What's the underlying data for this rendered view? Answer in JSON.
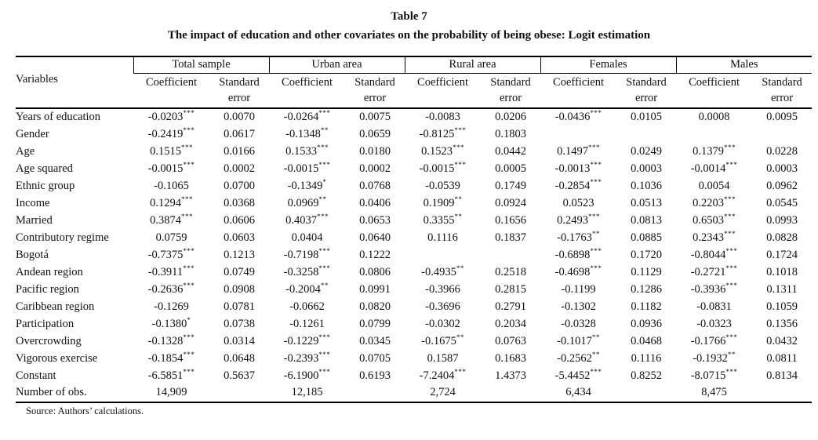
{
  "title": {
    "line1": "Table 7",
    "line2": "The impact of education and other covariates on the probability of being obese: Logit estimation"
  },
  "table": {
    "variables_header": "Variables",
    "groups": [
      "Total sample",
      "Urban area",
      "Rural area",
      "Females",
      "Males"
    ],
    "col_headers": {
      "coefficient": "Coefficient",
      "standard": "Standard",
      "error": "error"
    },
    "rows": [
      {
        "label": "Years of education",
        "cells": [
          {
            "coef": "-0.0203",
            "stars": "***",
            "se": "0.0070"
          },
          {
            "coef": "-0.0264",
            "stars": "***",
            "se": "0.0075"
          },
          {
            "coef": "-0.0083",
            "stars": "",
            "se": "0.0206"
          },
          {
            "coef": "-0.0436",
            "stars": "***",
            "se": "0.0105"
          },
          {
            "coef": "0.0008",
            "stars": "",
            "se": "0.0095"
          }
        ]
      },
      {
        "label": "Gender",
        "cells": [
          {
            "coef": "-0.2419",
            "stars": "***",
            "se": "0.0617"
          },
          {
            "coef": "-0.1348",
            "stars": "**",
            "se": "0.0659"
          },
          {
            "coef": "-0.8125",
            "stars": "***",
            "se": "0.1803"
          },
          {
            "coef": "",
            "stars": "",
            "se": ""
          },
          {
            "coef": "",
            "stars": "",
            "se": ""
          }
        ]
      },
      {
        "label": "Age",
        "cells": [
          {
            "coef": "0.1515",
            "stars": "***",
            "se": "0.0166"
          },
          {
            "coef": "0.1533",
            "stars": "***",
            "se": "0.0180"
          },
          {
            "coef": "0.1523",
            "stars": "***",
            "se": "0.0442"
          },
          {
            "coef": "0.1497",
            "stars": "***",
            "se": "0.0249"
          },
          {
            "coef": "0.1379",
            "stars": "***",
            "se": "0.0228"
          }
        ]
      },
      {
        "label": "Age squared",
        "cells": [
          {
            "coef": "-0.0015",
            "stars": "***",
            "se": "0.0002"
          },
          {
            "coef": "-0.0015",
            "stars": "***",
            "se": "0.0002"
          },
          {
            "coef": "-0.0015",
            "stars": "***",
            "se": "0.0005"
          },
          {
            "coef": "-0.0013",
            "stars": "***",
            "se": "0.0003"
          },
          {
            "coef": "-0.0014",
            "stars": "***",
            "se": "0.0003"
          }
        ]
      },
      {
        "label": "Ethnic group",
        "cells": [
          {
            "coef": "-0.1065",
            "stars": "",
            "se": "0.0700"
          },
          {
            "coef": "-0.1349",
            "stars": "*",
            "se": "0.0768"
          },
          {
            "coef": "-0.0539",
            "stars": "",
            "se": "0.1749"
          },
          {
            "coef": "-0.2854",
            "stars": "***",
            "se": "0.1036"
          },
          {
            "coef": "0.0054",
            "stars": "",
            "se": "0.0962"
          }
        ]
      },
      {
        "label": "Income",
        "cells": [
          {
            "coef": "0.1294",
            "stars": "***",
            "se": "0.0368"
          },
          {
            "coef": "0.0969",
            "stars": "**",
            "se": "0.0406"
          },
          {
            "coef": "0.1909",
            "stars": "**",
            "se": "0.0924"
          },
          {
            "coef": "0.0523",
            "stars": "",
            "se": "0.0513"
          },
          {
            "coef": "0.2203",
            "stars": "***",
            "se": "0.0545"
          }
        ]
      },
      {
        "label": "Married",
        "cells": [
          {
            "coef": "0.3874",
            "stars": "***",
            "se": "0.0606"
          },
          {
            "coef": "0.4037",
            "stars": "***",
            "se": "0.0653"
          },
          {
            "coef": "0.3355",
            "stars": "**",
            "se": "0.1656"
          },
          {
            "coef": "0.2493",
            "stars": "***",
            "se": "0.0813"
          },
          {
            "coef": "0.6503",
            "stars": "***",
            "se": "0.0993"
          }
        ]
      },
      {
        "label": "Contributory regime",
        "cells": [
          {
            "coef": "0.0759",
            "stars": "",
            "se": "0.0603"
          },
          {
            "coef": "0.0404",
            "stars": "",
            "se": "0.0640"
          },
          {
            "coef": "0.1116",
            "stars": "",
            "se": "0.1837"
          },
          {
            "coef": "-0.1763",
            "stars": "**",
            "se": "0.0885"
          },
          {
            "coef": "0.2343",
            "stars": "***",
            "se": "0.0828"
          }
        ]
      },
      {
        "label": "Bogotá",
        "cells": [
          {
            "coef": "-0.7375",
            "stars": "***",
            "se": "0.1213"
          },
          {
            "coef": "-0.7198",
            "stars": "***",
            "se": "0.1222"
          },
          {
            "coef": "",
            "stars": "",
            "se": ""
          },
          {
            "coef": "-0.6898",
            "stars": "***",
            "se": "0.1720"
          },
          {
            "coef": "-0.8044",
            "stars": "***",
            "se": "0.1724"
          }
        ]
      },
      {
        "label": "Andean region",
        "cells": [
          {
            "coef": "-0.3911",
            "stars": "***",
            "se": "0.0749"
          },
          {
            "coef": "-0.3258",
            "stars": "***",
            "se": "0.0806"
          },
          {
            "coef": "-0.4935",
            "stars": "**",
            "se": "0.2518"
          },
          {
            "coef": "-0.4698",
            "stars": "***",
            "se": "0.1129"
          },
          {
            "coef": "-0.2721",
            "stars": "***",
            "se": "0.1018"
          }
        ]
      },
      {
        "label": "Pacific region",
        "cells": [
          {
            "coef": "-0.2636",
            "stars": "***",
            "se": "0.0908"
          },
          {
            "coef": "-0.2004",
            "stars": "**",
            "se": "0.0991"
          },
          {
            "coef": "-0.3966",
            "stars": "",
            "se": "0.2815"
          },
          {
            "coef": "-0.1199",
            "stars": "",
            "se": "0.1286"
          },
          {
            "coef": "-0.3936",
            "stars": "***",
            "se": "0.1311"
          }
        ]
      },
      {
        "label": "Caribbean region",
        "cells": [
          {
            "coef": "-0.1269",
            "stars": "",
            "se": "0.0781"
          },
          {
            "coef": "-0.0662",
            "stars": "",
            "se": "0.0820"
          },
          {
            "coef": "-0.3696",
            "stars": "",
            "se": "0.2791"
          },
          {
            "coef": "-0.1302",
            "stars": "",
            "se": "0.1182"
          },
          {
            "coef": "-0.0831",
            "stars": "",
            "se": "0.1059"
          }
        ]
      },
      {
        "label": "Participation",
        "cells": [
          {
            "coef": "-0.1380",
            "stars": "*",
            "se": "0.0738"
          },
          {
            "coef": "-0.1261",
            "stars": "",
            "se": "0.0799"
          },
          {
            "coef": "-0.0302",
            "stars": "",
            "se": "0.2034"
          },
          {
            "coef": "-0.0328",
            "stars": "",
            "se": "0.0936"
          },
          {
            "coef": "-0.0323",
            "stars": "",
            "se": "0.1356"
          }
        ]
      },
      {
        "label": "Overcrowding",
        "cells": [
          {
            "coef": "-0.1328",
            "stars": "***",
            "se": "0.0314"
          },
          {
            "coef": "-0.1229",
            "stars": "***",
            "se": "0.0345"
          },
          {
            "coef": "-0.1675",
            "stars": "**",
            "se": "0.0763"
          },
          {
            "coef": "-0.1017",
            "stars": "**",
            "se": "0.0468"
          },
          {
            "coef": "-0.1766",
            "stars": "***",
            "se": "0.0432"
          }
        ]
      },
      {
        "label": "Vigorous exercise",
        "cells": [
          {
            "coef": "-0.1854",
            "stars": "***",
            "se": "0.0648"
          },
          {
            "coef": "-0.2393",
            "stars": "***",
            "se": "0.0705"
          },
          {
            "coef": "0.1587",
            "stars": "",
            "se": "0.1683"
          },
          {
            "coef": "-0.2562",
            "stars": "**",
            "se": "0.1116"
          },
          {
            "coef": "-0.1932",
            "stars": "**",
            "se": "0.0811"
          }
        ]
      },
      {
        "label": "Constant",
        "cells": [
          {
            "coef": "-6.5851",
            "stars": "***",
            "se": "0.5637"
          },
          {
            "coef": "-6.1900",
            "stars": "***",
            "se": "0.6193"
          },
          {
            "coef": "-7.2404",
            "stars": "***",
            "se": "1.4373"
          },
          {
            "coef": "-5.4452",
            "stars": "***",
            "se": "0.8252"
          },
          {
            "coef": "-8.0715",
            "stars": "***",
            "se": "0.8134"
          }
        ]
      }
    ],
    "obs_row": {
      "label": "Number of obs.",
      "values": [
        "14,909",
        "12,185",
        "2,724",
        "6,434",
        "8,475"
      ]
    }
  },
  "source_note": "Source: Authors’ calculations."
}
